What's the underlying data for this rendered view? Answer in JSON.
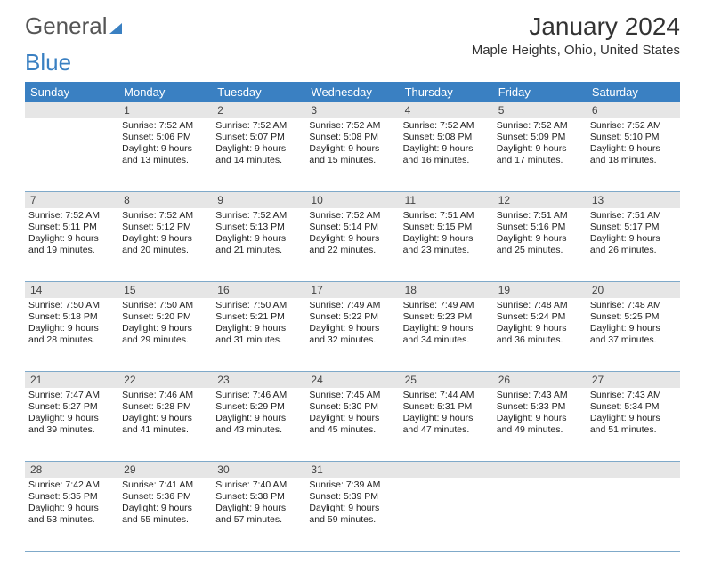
{
  "logo": {
    "part1": "General",
    "part2": "Blue"
  },
  "header": {
    "title": "January 2024",
    "location": "Maple Heights, Ohio, United States"
  },
  "colors": {
    "header_bg": "#3a80c2",
    "header_text": "#ffffff",
    "daynum_bg": "#e6e6e6",
    "week_border": "#7fa9c9",
    "text": "#222222",
    "logo_gray": "#555555",
    "logo_blue": "#3a80c2"
  },
  "dayNames": [
    "Sunday",
    "Monday",
    "Tuesday",
    "Wednesday",
    "Thursday",
    "Friday",
    "Saturday"
  ],
  "weeks": [
    [
      {
        "num": "",
        "lines": []
      },
      {
        "num": "1",
        "lines": [
          "Sunrise: 7:52 AM",
          "Sunset: 5:06 PM",
          "Daylight: 9 hours",
          "and 13 minutes."
        ]
      },
      {
        "num": "2",
        "lines": [
          "Sunrise: 7:52 AM",
          "Sunset: 5:07 PM",
          "Daylight: 9 hours",
          "and 14 minutes."
        ]
      },
      {
        "num": "3",
        "lines": [
          "Sunrise: 7:52 AM",
          "Sunset: 5:08 PM",
          "Daylight: 9 hours",
          "and 15 minutes."
        ]
      },
      {
        "num": "4",
        "lines": [
          "Sunrise: 7:52 AM",
          "Sunset: 5:08 PM",
          "Daylight: 9 hours",
          "and 16 minutes."
        ]
      },
      {
        "num": "5",
        "lines": [
          "Sunrise: 7:52 AM",
          "Sunset: 5:09 PM",
          "Daylight: 9 hours",
          "and 17 minutes."
        ]
      },
      {
        "num": "6",
        "lines": [
          "Sunrise: 7:52 AM",
          "Sunset: 5:10 PM",
          "Daylight: 9 hours",
          "and 18 minutes."
        ]
      }
    ],
    [
      {
        "num": "7",
        "lines": [
          "Sunrise: 7:52 AM",
          "Sunset: 5:11 PM",
          "Daylight: 9 hours",
          "and 19 minutes."
        ]
      },
      {
        "num": "8",
        "lines": [
          "Sunrise: 7:52 AM",
          "Sunset: 5:12 PM",
          "Daylight: 9 hours",
          "and 20 minutes."
        ]
      },
      {
        "num": "9",
        "lines": [
          "Sunrise: 7:52 AM",
          "Sunset: 5:13 PM",
          "Daylight: 9 hours",
          "and 21 minutes."
        ]
      },
      {
        "num": "10",
        "lines": [
          "Sunrise: 7:52 AM",
          "Sunset: 5:14 PM",
          "Daylight: 9 hours",
          "and 22 minutes."
        ]
      },
      {
        "num": "11",
        "lines": [
          "Sunrise: 7:51 AM",
          "Sunset: 5:15 PM",
          "Daylight: 9 hours",
          "and 23 minutes."
        ]
      },
      {
        "num": "12",
        "lines": [
          "Sunrise: 7:51 AM",
          "Sunset: 5:16 PM",
          "Daylight: 9 hours",
          "and 25 minutes."
        ]
      },
      {
        "num": "13",
        "lines": [
          "Sunrise: 7:51 AM",
          "Sunset: 5:17 PM",
          "Daylight: 9 hours",
          "and 26 minutes."
        ]
      }
    ],
    [
      {
        "num": "14",
        "lines": [
          "Sunrise: 7:50 AM",
          "Sunset: 5:18 PM",
          "Daylight: 9 hours",
          "and 28 minutes."
        ]
      },
      {
        "num": "15",
        "lines": [
          "Sunrise: 7:50 AM",
          "Sunset: 5:20 PM",
          "Daylight: 9 hours",
          "and 29 minutes."
        ]
      },
      {
        "num": "16",
        "lines": [
          "Sunrise: 7:50 AM",
          "Sunset: 5:21 PM",
          "Daylight: 9 hours",
          "and 31 minutes."
        ]
      },
      {
        "num": "17",
        "lines": [
          "Sunrise: 7:49 AM",
          "Sunset: 5:22 PM",
          "Daylight: 9 hours",
          "and 32 minutes."
        ]
      },
      {
        "num": "18",
        "lines": [
          "Sunrise: 7:49 AM",
          "Sunset: 5:23 PM",
          "Daylight: 9 hours",
          "and 34 minutes."
        ]
      },
      {
        "num": "19",
        "lines": [
          "Sunrise: 7:48 AM",
          "Sunset: 5:24 PM",
          "Daylight: 9 hours",
          "and 36 minutes."
        ]
      },
      {
        "num": "20",
        "lines": [
          "Sunrise: 7:48 AM",
          "Sunset: 5:25 PM",
          "Daylight: 9 hours",
          "and 37 minutes."
        ]
      }
    ],
    [
      {
        "num": "21",
        "lines": [
          "Sunrise: 7:47 AM",
          "Sunset: 5:27 PM",
          "Daylight: 9 hours",
          "and 39 minutes."
        ]
      },
      {
        "num": "22",
        "lines": [
          "Sunrise: 7:46 AM",
          "Sunset: 5:28 PM",
          "Daylight: 9 hours",
          "and 41 minutes."
        ]
      },
      {
        "num": "23",
        "lines": [
          "Sunrise: 7:46 AM",
          "Sunset: 5:29 PM",
          "Daylight: 9 hours",
          "and 43 minutes."
        ]
      },
      {
        "num": "24",
        "lines": [
          "Sunrise: 7:45 AM",
          "Sunset: 5:30 PM",
          "Daylight: 9 hours",
          "and 45 minutes."
        ]
      },
      {
        "num": "25",
        "lines": [
          "Sunrise: 7:44 AM",
          "Sunset: 5:31 PM",
          "Daylight: 9 hours",
          "and 47 minutes."
        ]
      },
      {
        "num": "26",
        "lines": [
          "Sunrise: 7:43 AM",
          "Sunset: 5:33 PM",
          "Daylight: 9 hours",
          "and 49 minutes."
        ]
      },
      {
        "num": "27",
        "lines": [
          "Sunrise: 7:43 AM",
          "Sunset: 5:34 PM",
          "Daylight: 9 hours",
          "and 51 minutes."
        ]
      }
    ],
    [
      {
        "num": "28",
        "lines": [
          "Sunrise: 7:42 AM",
          "Sunset: 5:35 PM",
          "Daylight: 9 hours",
          "and 53 minutes."
        ]
      },
      {
        "num": "29",
        "lines": [
          "Sunrise: 7:41 AM",
          "Sunset: 5:36 PM",
          "Daylight: 9 hours",
          "and 55 minutes."
        ]
      },
      {
        "num": "30",
        "lines": [
          "Sunrise: 7:40 AM",
          "Sunset: 5:38 PM",
          "Daylight: 9 hours",
          "and 57 minutes."
        ]
      },
      {
        "num": "31",
        "lines": [
          "Sunrise: 7:39 AM",
          "Sunset: 5:39 PM",
          "Daylight: 9 hours",
          "and 59 minutes."
        ]
      },
      {
        "num": "",
        "lines": []
      },
      {
        "num": "",
        "lines": []
      },
      {
        "num": "",
        "lines": []
      }
    ]
  ]
}
